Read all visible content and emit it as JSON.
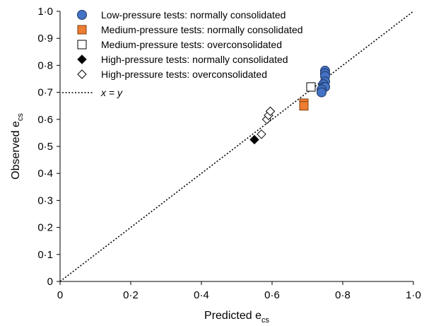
{
  "chart_data": {
    "type": "scatter",
    "xlabel": {
      "main": "Predicted e",
      "sub": "cs"
    },
    "ylabel": {
      "main": "Observed e",
      "sub": "cs"
    },
    "xlim": [
      0,
      1.0
    ],
    "ylim": [
      0,
      1.0
    ],
    "x_ticks": [
      {
        "value": 0,
        "label": "0"
      },
      {
        "value": 0.2,
        "label": "0·2"
      },
      {
        "value": 0.4,
        "label": "0·4"
      },
      {
        "value": 0.6,
        "label": "0·6"
      },
      {
        "value": 0.8,
        "label": "0·8"
      },
      {
        "value": 1.0,
        "label": "1·0"
      }
    ],
    "y_ticks": [
      {
        "value": 0,
        "label": "0"
      },
      {
        "value": 0.1,
        "label": "0·1"
      },
      {
        "value": 0.2,
        "label": "0·2"
      },
      {
        "value": 0.3,
        "label": "0·3"
      },
      {
        "value": 0.4,
        "label": "0·4"
      },
      {
        "value": 0.5,
        "label": "0·5"
      },
      {
        "value": 0.6,
        "label": "0·6"
      },
      {
        "value": 0.7,
        "label": "0·7"
      },
      {
        "value": 0.8,
        "label": "0·8"
      },
      {
        "value": 0.9,
        "label": "0·9"
      },
      {
        "value": 1.0,
        "label": "1·0"
      }
    ],
    "grid": false,
    "legend_position": "top-left",
    "series": [
      {
        "name": "Low-pressure tests: normally consolidated",
        "marker": "circle",
        "fill": "#4472C4",
        "stroke": "#1F3864",
        "points": [
          [
            0.75,
            0.78
          ],
          [
            0.75,
            0.77
          ],
          [
            0.75,
            0.76
          ],
          [
            0.75,
            0.74
          ],
          [
            0.745,
            0.73
          ],
          [
            0.745,
            0.72
          ],
          [
            0.75,
            0.72
          ],
          [
            0.74,
            0.71
          ],
          [
            0.74,
            0.7
          ]
        ]
      },
      {
        "name": "Medium-pressure tests: normally consolidated",
        "marker": "square",
        "fill": "#ED7D31",
        "stroke": "#7F3F10",
        "points": [
          [
            0.69,
            0.66
          ],
          [
            0.69,
            0.65
          ]
        ]
      },
      {
        "name": "Medium-pressure tests: overconsolidated",
        "marker": "square",
        "fill": "#ffffff",
        "stroke": "#000000",
        "points": [
          [
            0.71,
            0.72
          ]
        ]
      },
      {
        "name": "High-pressure tests: normally consolidated",
        "marker": "diamond",
        "fill": "#000000",
        "stroke": "#000000",
        "points": [
          [
            0.55,
            0.525
          ]
        ]
      },
      {
        "name": "High-pressure tests: overconsolidated",
        "marker": "diamond",
        "fill": "#ffffff",
        "stroke": "#000000",
        "points": [
          [
            0.57,
            0.545
          ],
          [
            0.585,
            0.6
          ],
          [
            0.59,
            0.615
          ],
          [
            0.595,
            0.63
          ]
        ]
      }
    ],
    "reference_line": {
      "label": "x = y",
      "from": [
        0,
        0
      ],
      "to": [
        1.0,
        1.0
      ]
    }
  }
}
